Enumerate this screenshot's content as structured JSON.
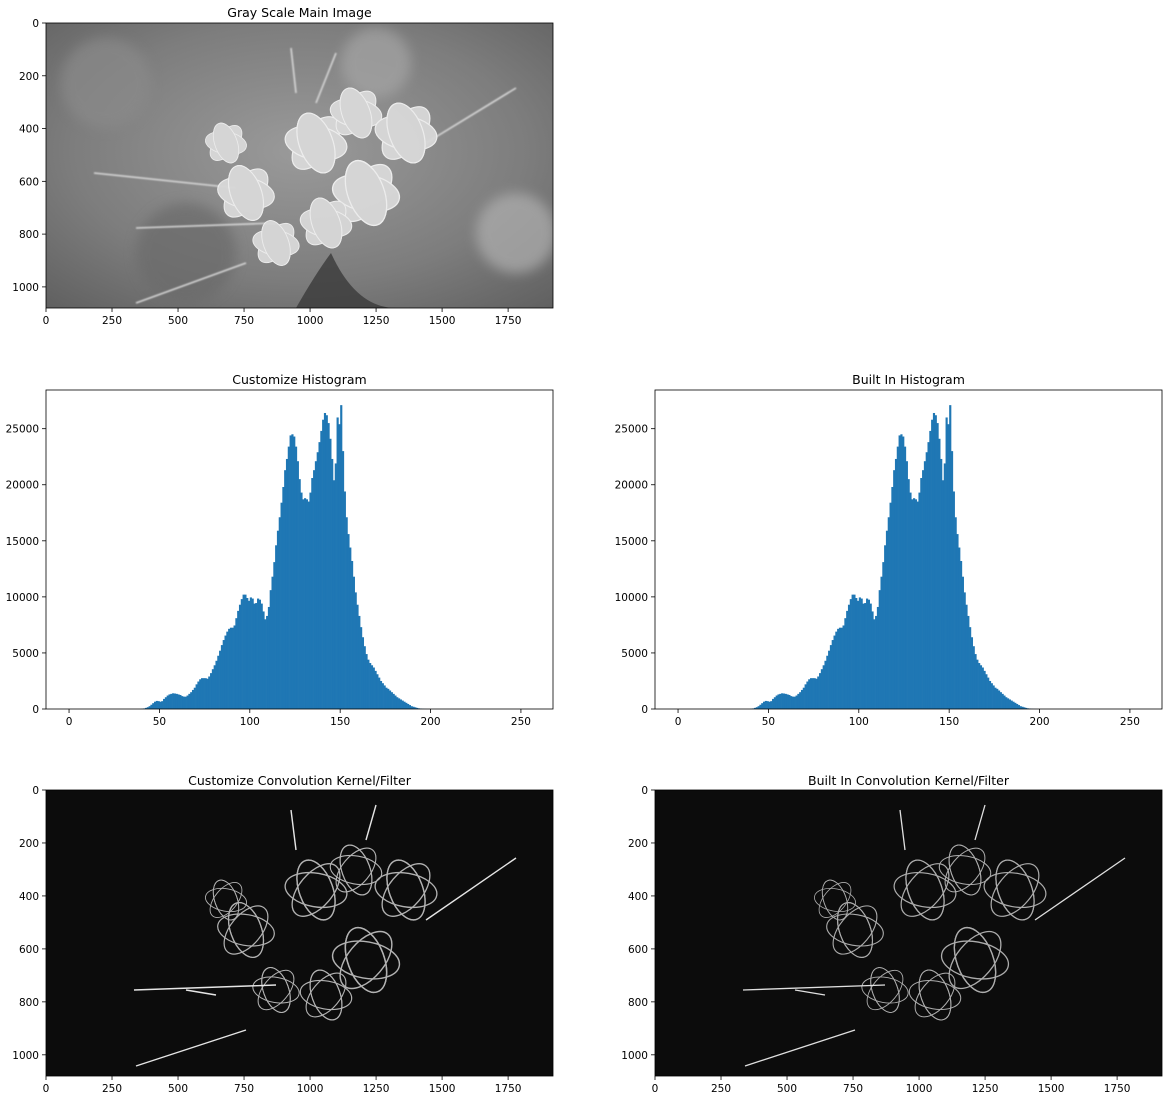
{
  "figure": {
    "background": "#ffffff"
  },
  "colors": {
    "bar": "#1f77b4"
  },
  "chart_data": [
    {
      "type": "image",
      "title": "Gray Scale Main Image",
      "image": "grayscale photograph of a spider flower (cleome) cluster on a blurred background",
      "xlim": [
        0,
        1920
      ],
      "ylim": [
        1080,
        0
      ],
      "xticks": [
        0,
        250,
        500,
        750,
        1000,
        1250,
        1500,
        1750
      ],
      "yticks": [
        0,
        200,
        400,
        600,
        800,
        1000
      ]
    },
    {
      "type": "bar",
      "title": "Customize Histogram",
      "xlim": [
        -12.75,
        267.75
      ],
      "ylim": [
        0,
        28450
      ],
      "xticks": [
        0,
        50,
        100,
        150,
        200,
        250
      ],
      "yticks": [
        0,
        5000,
        10000,
        15000,
        20000,
        25000
      ],
      "x": "pixel intensity 0-255, bin width 1",
      "values": "hist"
    },
    {
      "type": "bar",
      "title": "Built In Histogram",
      "xlim": [
        -12.75,
        267.75
      ],
      "ylim": [
        0,
        28450
      ],
      "xticks": [
        0,
        50,
        100,
        150,
        200,
        250
      ],
      "yticks": [
        0,
        5000,
        10000,
        15000,
        20000,
        25000
      ],
      "x": "pixel intensity 0-255, bin width 1",
      "values": "hist"
    },
    {
      "type": "image",
      "title": "Customize Convolution Kernel/Filter",
      "image": "edge-detected (emboss) version of the flower photograph on a black background",
      "xlim": [
        0,
        1920
      ],
      "ylim": [
        1080,
        0
      ],
      "xticks": [
        0,
        250,
        500,
        750,
        1000,
        1250,
        1500,
        1750
      ],
      "yticks": [
        0,
        200,
        400,
        600,
        800,
        1000
      ]
    },
    {
      "type": "image",
      "title": "Built In Convolution Kernel/Filter",
      "image": "edge-detected (emboss) version of the flower photograph on a black background",
      "xlim": [
        0,
        1920
      ],
      "ylim": [
        1080,
        0
      ],
      "xticks": [
        0,
        250,
        500,
        750,
        1000,
        1250,
        1500,
        1750
      ],
      "yticks": [
        0,
        200,
        400,
        600,
        800,
        1000
      ]
    }
  ],
  "hist": [
    0,
    0,
    0,
    0,
    0,
    0,
    0,
    0,
    0,
    0,
    0,
    0,
    0,
    0,
    0,
    0,
    0,
    0,
    0,
    0,
    0,
    0,
    0,
    0,
    0,
    0,
    0,
    0,
    0,
    0,
    0,
    0,
    0,
    0,
    0,
    0,
    0,
    0,
    0,
    0,
    20,
    50,
    100,
    160,
    250,
    380,
    520,
    650,
    720,
    700,
    650,
    700,
    900,
    1050,
    1200,
    1300,
    1350,
    1400,
    1380,
    1350,
    1300,
    1250,
    1150,
    1100,
    1100,
    1200,
    1350,
    1500,
    1700,
    1900,
    2200,
    2450,
    2650,
    2750,
    2750,
    2750,
    2700,
    2900,
    3200,
    3550,
    3900,
    4300,
    4750,
    5200,
    5700,
    6150,
    6550,
    6900,
    7150,
    7250,
    7250,
    7450,
    8100,
    8750,
    9300,
    9800,
    10200,
    10200,
    9900,
    9650,
    9950,
    9850,
    9400,
    9450,
    9850,
    9750,
    9400,
    8700,
    8000,
    8300,
    9100,
    10600,
    11800,
    13100,
    14600,
    15900,
    17100,
    18400,
    19800,
    21300,
    22300,
    23400,
    24400,
    24500,
    24300,
    23400,
    22100,
    20500,
    19300,
    18700,
    18800,
    18700,
    18500,
    19300,
    20600,
    21300,
    22100,
    22900,
    23800,
    24800,
    25800,
    26400,
    26200,
    25500,
    24100,
    22300,
    20400,
    21900,
    26000,
    25400,
    27100,
    23000,
    19400,
    17100,
    15600,
    14400,
    13200,
    11800,
    10400,
    9300,
    8300,
    7300,
    6400,
    5600,
    4900,
    4400,
    4100,
    3900,
    3700,
    3400,
    3100,
    2800,
    2500,
    2300,
    2100,
    1900,
    1800,
    1650,
    1500,
    1350,
    1200,
    1050,
    950,
    850,
    750,
    650,
    550,
    450,
    350,
    250,
    200,
    150,
    100,
    60,
    40,
    20,
    10,
    5,
    0,
    0,
    0,
    0,
    0,
    0,
    0,
    0,
    0,
    0,
    0,
    0,
    0,
    0,
    0,
    0,
    0,
    0,
    0,
    0,
    0,
    0,
    0,
    0,
    0,
    0,
    0,
    0,
    0,
    0,
    0,
    0,
    0,
    0,
    0,
    0,
    0,
    0,
    0,
    0,
    0,
    0,
    0,
    0,
    0,
    0,
    0,
    0,
    0,
    0,
    0,
    0,
    0,
    0,
    0,
    0,
    0,
    0
  ]
}
